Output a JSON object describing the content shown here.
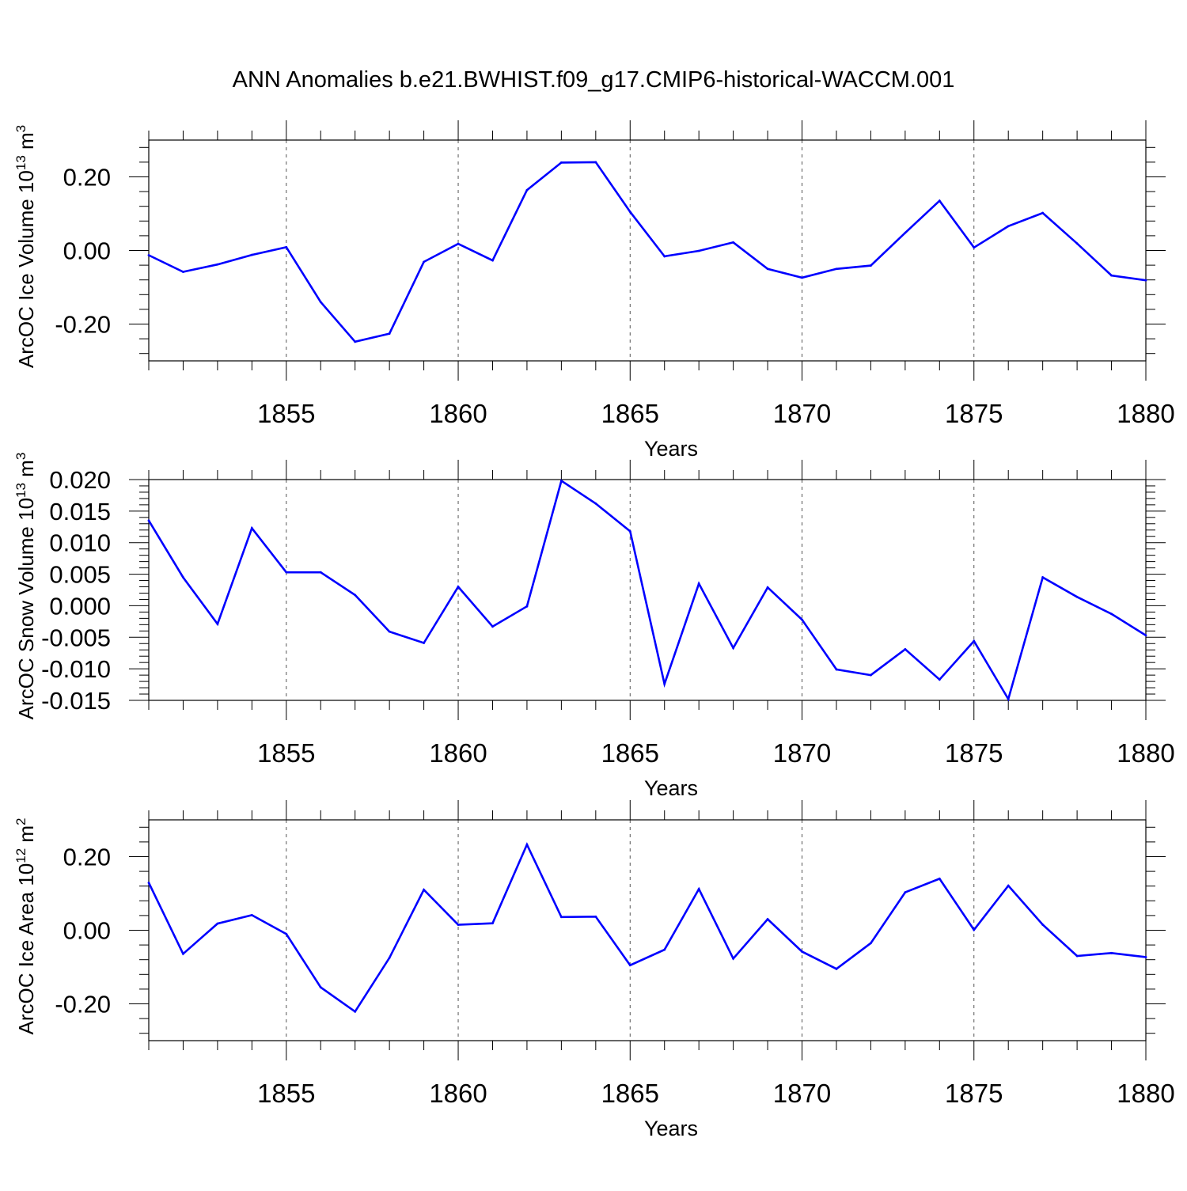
{
  "title": "ANN Anomalies b.e21.BWHIST.f09_g17.CMIP6-historical-WACCM.001",
  "line_color": "#0000ff",
  "chart_data": [
    {
      "type": "line",
      "ylabel_main": "ArcOC Ice Volume 10",
      "ylabel_sup": "13",
      "ylabel_unit": " m",
      "ylabel_unit_sup": "3",
      "xlabel": "Years",
      "xlim": [
        1851,
        1880
      ],
      "ylim": [
        -0.3,
        0.3
      ],
      "yticks": [
        -0.2,
        0.0,
        0.2
      ],
      "ytick_labels": [
        "-0.20",
        "0.00",
        "0.20"
      ],
      "xticks": [
        1855,
        1860,
        1865,
        1870,
        1875,
        1880
      ],
      "xtick_labels": [
        "1855",
        "1860",
        "1865",
        "1870",
        "1875",
        "1880"
      ],
      "x": [
        1851,
        1852,
        1853,
        1854,
        1855,
        1856,
        1857,
        1858,
        1859,
        1860,
        1861,
        1862,
        1863,
        1864,
        1865,
        1866,
        1867,
        1868,
        1869,
        1870,
        1871,
        1872,
        1873,
        1874,
        1875,
        1876,
        1877,
        1878,
        1879,
        1880
      ],
      "values": [
        -0.013,
        -0.058,
        -0.038,
        -0.012,
        0.009,
        -0.14,
        -0.248,
        -0.226,
        -0.031,
        0.018,
        -0.027,
        0.164,
        0.239,
        0.24,
        0.105,
        -0.016,
        -0.001,
        0.022,
        -0.05,
        -0.074,
        -0.05,
        -0.041,
        0.048,
        0.135,
        0.008,
        0.066,
        0.102,
        0.019,
        -0.068,
        -0.081
      ]
    },
    {
      "type": "line",
      "ylabel_main": "ArcOC Snow Volume 10",
      "ylabel_sup": "13",
      "ylabel_unit": " m",
      "ylabel_unit_sup": "3",
      "xlabel": "Years",
      "xlim": [
        1851,
        1880
      ],
      "ylim": [
        -0.015,
        0.02
      ],
      "yticks": [
        -0.015,
        -0.01,
        -0.005,
        0.0,
        0.005,
        0.01,
        0.015,
        0.02
      ],
      "ytick_labels": [
        "-0.015",
        "-0.010",
        "-0.005",
        "0.000",
        "0.005",
        "0.010",
        "0.015",
        "0.020"
      ],
      "xticks": [
        1855,
        1860,
        1865,
        1870,
        1875,
        1880
      ],
      "xtick_labels": [
        "1855",
        "1860",
        "1865",
        "1870",
        "1875",
        "1880"
      ],
      "x": [
        1851,
        1852,
        1853,
        1854,
        1855,
        1856,
        1857,
        1858,
        1859,
        1860,
        1861,
        1862,
        1863,
        1864,
        1865,
        1866,
        1867,
        1868,
        1869,
        1870,
        1871,
        1872,
        1873,
        1874,
        1875,
        1876,
        1877,
        1878,
        1879,
        1880
      ],
      "values": [
        0.0135,
        0.0045,
        -0.0029,
        0.0123,
        0.0053,
        0.0053,
        0.0017,
        -0.0041,
        -0.0059,
        0.003,
        -0.0033,
        -0.0001,
        0.0198,
        0.0162,
        0.0118,
        -0.0124,
        0.0035,
        -0.0067,
        0.0029,
        -0.0022,
        -0.0101,
        -0.011,
        -0.0069,
        -0.0117,
        -0.0056,
        -0.0148,
        0.0045,
        0.0014,
        -0.0013,
        -0.0047
      ]
    },
    {
      "type": "line",
      "ylabel_main": "ArcOC Ice Area 10",
      "ylabel_sup": "12",
      "ylabel_unit": " m",
      "ylabel_unit_sup": "2",
      "xlabel": "Years",
      "xlim": [
        1851,
        1880
      ],
      "ylim": [
        -0.3,
        0.3
      ],
      "yticks": [
        -0.2,
        0.0,
        0.2
      ],
      "ytick_labels": [
        "-0.20",
        "0.00",
        "0.20"
      ],
      "xticks": [
        1855,
        1860,
        1865,
        1870,
        1875,
        1880
      ],
      "xtick_labels": [
        "1855",
        "1860",
        "1865",
        "1870",
        "1875",
        "1880"
      ],
      "x": [
        1851,
        1852,
        1853,
        1854,
        1855,
        1856,
        1857,
        1858,
        1859,
        1860,
        1861,
        1862,
        1863,
        1864,
        1865,
        1866,
        1867,
        1868,
        1869,
        1870,
        1871,
        1872,
        1873,
        1874,
        1875,
        1876,
        1877,
        1878,
        1879,
        1880
      ],
      "values": [
        0.129,
        -0.064,
        0.018,
        0.041,
        -0.01,
        -0.155,
        -0.221,
        -0.075,
        0.11,
        0.015,
        0.019,
        0.233,
        0.036,
        0.037,
        -0.095,
        -0.053,
        0.112,
        -0.077,
        0.03,
        -0.058,
        -0.105,
        -0.035,
        0.103,
        0.14,
        0.001,
        0.121,
        0.015,
        -0.07,
        -0.062,
        -0.073
      ]
    }
  ]
}
